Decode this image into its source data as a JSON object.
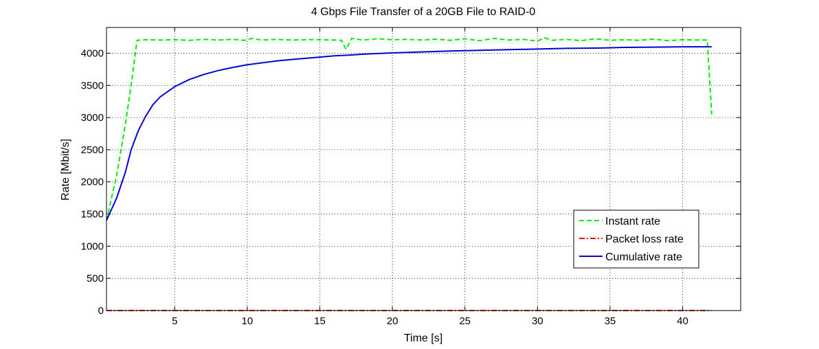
{
  "chart_data": {
    "type": "line",
    "title": "4 Gbps File Transfer of a 20GB File to RAID-0",
    "xlabel": "Time [s]",
    "ylabel": "Rate [Mbit/s]",
    "xlim": [
      0.3,
      44
    ],
    "ylim": [
      0,
      4400
    ],
    "xticks": [
      5,
      10,
      15,
      20,
      25,
      30,
      35,
      40
    ],
    "yticks": [
      0,
      500,
      1000,
      1500,
      2000,
      2500,
      3000,
      3500,
      4000
    ],
    "grid": true,
    "legend_position": "bottom-right",
    "series": [
      {
        "name": "Instant rate",
        "color": "#00ee00",
        "style": "dashed",
        "points": [
          [
            0.3,
            1400
          ],
          [
            1.0,
            2100
          ],
          [
            1.6,
            2900
          ],
          [
            2.0,
            3500
          ],
          [
            2.4,
            4200
          ],
          [
            3,
            4210
          ],
          [
            4,
            4205
          ],
          [
            5,
            4210
          ],
          [
            6,
            4200
          ],
          [
            7,
            4215
          ],
          [
            8,
            4205
          ],
          [
            9,
            4215
          ],
          [
            9.8,
            4200
          ],
          [
            10.3,
            4230
          ],
          [
            11,
            4205
          ],
          [
            12,
            4215
          ],
          [
            13,
            4205
          ],
          [
            14,
            4210
          ],
          [
            15,
            4210
          ],
          [
            16,
            4205
          ],
          [
            16.5,
            4200
          ],
          [
            16.8,
            4060
          ],
          [
            17.2,
            4230
          ],
          [
            18,
            4205
          ],
          [
            19,
            4225
          ],
          [
            20,
            4210
          ],
          [
            21,
            4215
          ],
          [
            22,
            4205
          ],
          [
            23,
            4220
          ],
          [
            24,
            4200
          ],
          [
            25,
            4225
          ],
          [
            26,
            4195
          ],
          [
            27,
            4230
          ],
          [
            28,
            4205
          ],
          [
            29,
            4215
          ],
          [
            30,
            4190
          ],
          [
            30.5,
            4240
          ],
          [
            31,
            4200
          ],
          [
            32,
            4215
          ],
          [
            33,
            4195
          ],
          [
            34,
            4225
          ],
          [
            35,
            4200
          ],
          [
            36,
            4210
          ],
          [
            37,
            4200
          ],
          [
            38,
            4220
          ],
          [
            39,
            4195
          ],
          [
            40,
            4210
          ],
          [
            41,
            4205
          ],
          [
            41.7,
            4205
          ],
          [
            42.0,
            3050
          ]
        ]
      },
      {
        "name": "Packet loss rate",
        "color": "#ff0000",
        "style": "dashdot",
        "points": [
          [
            0.3,
            0
          ],
          [
            42,
            0
          ]
        ]
      },
      {
        "name": "Cumulative rate",
        "color": "#0000dd",
        "style": "solid",
        "points": [
          [
            0.3,
            1400
          ],
          [
            1,
            1750
          ],
          [
            1.6,
            2150
          ],
          [
            2,
            2500
          ],
          [
            2.5,
            2800
          ],
          [
            3,
            3020
          ],
          [
            3.5,
            3200
          ],
          [
            4,
            3320
          ],
          [
            5,
            3480
          ],
          [
            6,
            3590
          ],
          [
            7,
            3670
          ],
          [
            8,
            3730
          ],
          [
            9,
            3780
          ],
          [
            10,
            3820
          ],
          [
            11,
            3850
          ],
          [
            12,
            3880
          ],
          [
            13,
            3900
          ],
          [
            14,
            3920
          ],
          [
            15,
            3940
          ],
          [
            16,
            3960
          ],
          [
            17,
            3970
          ],
          [
            18,
            3985
          ],
          [
            19,
            3995
          ],
          [
            20,
            4005
          ],
          [
            22,
            4020
          ],
          [
            24,
            4035
          ],
          [
            26,
            4045
          ],
          [
            28,
            4055
          ],
          [
            30,
            4065
          ],
          [
            32,
            4075
          ],
          [
            34,
            4080
          ],
          [
            36,
            4090
          ],
          [
            38,
            4095
          ],
          [
            40,
            4100
          ],
          [
            42,
            4100
          ]
        ]
      }
    ]
  }
}
